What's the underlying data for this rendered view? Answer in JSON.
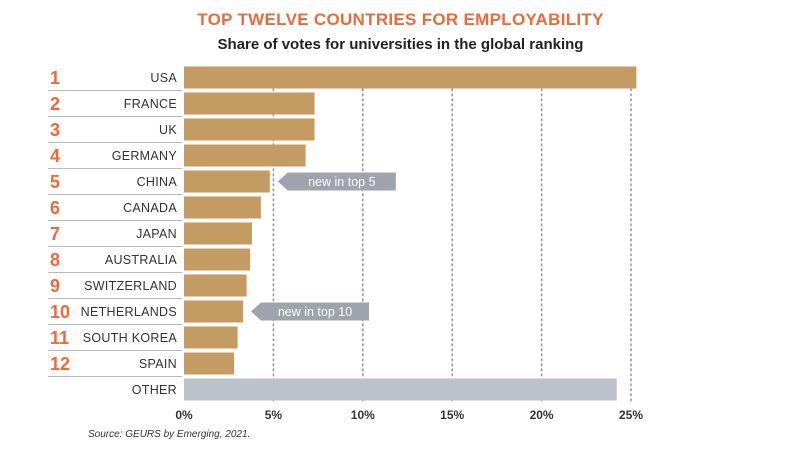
{
  "colors": {
    "accent": "#ec6a3a",
    "bar": "#c49b63",
    "other": "#bdc1cc",
    "callout": "#9ea3ad",
    "grid": "#999999",
    "rule": "#bbbbbb"
  },
  "source": "Source: GEURS by Emerging, 2021.",
  "chart_data": {
    "type": "bar",
    "orientation": "horizontal",
    "title": "TOP TWELVE COUNTRIES FOR EMPLOYABILITY",
    "subtitle": "Share of votes for universities in the global ranking",
    "xlabel": "",
    "ylabel": "",
    "xlim": [
      0,
      25
    ],
    "xticks": [
      0,
      5,
      10,
      15,
      20,
      25
    ],
    "xtick_labels": [
      "0%",
      "5%",
      "10%",
      "15%",
      "20%",
      "25%"
    ],
    "grid": "vertical dotted",
    "ranks": [
      "1",
      "2",
      "3",
      "4",
      "5",
      "6",
      "7",
      "8",
      "9",
      "10",
      "11",
      "12",
      ""
    ],
    "categories": [
      "USA",
      "FRANCE",
      "UK",
      "GERMANY",
      "CHINA",
      "CANADA",
      "JAPAN",
      "AUSTRALIA",
      "SWITZERLAND",
      "NETHERLANDS",
      "SOUTH KOREA",
      "SPAIN",
      "OTHER"
    ],
    "values": [
      25.3,
      7.3,
      7.3,
      6.8,
      4.8,
      4.3,
      3.8,
      3.7,
      3.5,
      3.3,
      3.0,
      2.8,
      24.2
    ],
    "annotations": [
      {
        "category": "CHINA",
        "text": "new in top 5"
      },
      {
        "category": "NETHERLANDS",
        "text": "new in top 10"
      }
    ]
  }
}
